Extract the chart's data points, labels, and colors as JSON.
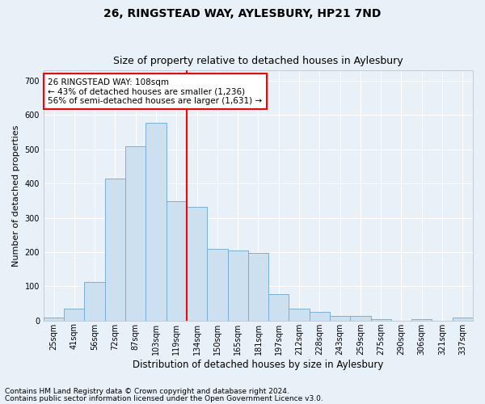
{
  "title": "26, RINGSTEAD WAY, AYLESBURY, HP21 7ND",
  "subtitle": "Size of property relative to detached houses in Aylesbury",
  "xlabel": "Distribution of detached houses by size in Aylesbury",
  "ylabel": "Number of detached properties",
  "bar_labels": [
    "25sqm",
    "41sqm",
    "56sqm",
    "72sqm",
    "87sqm",
    "103sqm",
    "119sqm",
    "134sqm",
    "150sqm",
    "165sqm",
    "181sqm",
    "197sqm",
    "212sqm",
    "228sqm",
    "243sqm",
    "259sqm",
    "275sqm",
    "290sqm",
    "306sqm",
    "321sqm",
    "337sqm"
  ],
  "bar_values": [
    8,
    35,
    113,
    415,
    508,
    578,
    348,
    333,
    210,
    205,
    198,
    77,
    35,
    25,
    13,
    13,
    5,
    0,
    5,
    0,
    8
  ],
  "bar_color": "#cce0f0",
  "bar_edge_color": "#7aafd4",
  "vline_color": "red",
  "vline_pos": 6.5,
  "ylim": [
    0,
    730
  ],
  "yticks": [
    0,
    100,
    200,
    300,
    400,
    500,
    600,
    700
  ],
  "annotation_text": "26 RINGSTEAD WAY: 108sqm\n← 43% of detached houses are smaller (1,236)\n56% of semi-detached houses are larger (1,631) →",
  "annotation_box_facecolor": "white",
  "annotation_box_edgecolor": "red",
  "footnote1": "Contains HM Land Registry data © Crown copyright and database right 2024.",
  "footnote2": "Contains public sector information licensed under the Open Government Licence v3.0.",
  "bg_color": "#e8f0f8",
  "plot_bg_color": "#e8f0f8",
  "grid_color": "white",
  "title_fontsize": 10,
  "subtitle_fontsize": 9,
  "xlabel_fontsize": 8.5,
  "ylabel_fontsize": 8,
  "tick_fontsize": 7,
  "annotation_fontsize": 7.5,
  "footnote_fontsize": 6.5
}
